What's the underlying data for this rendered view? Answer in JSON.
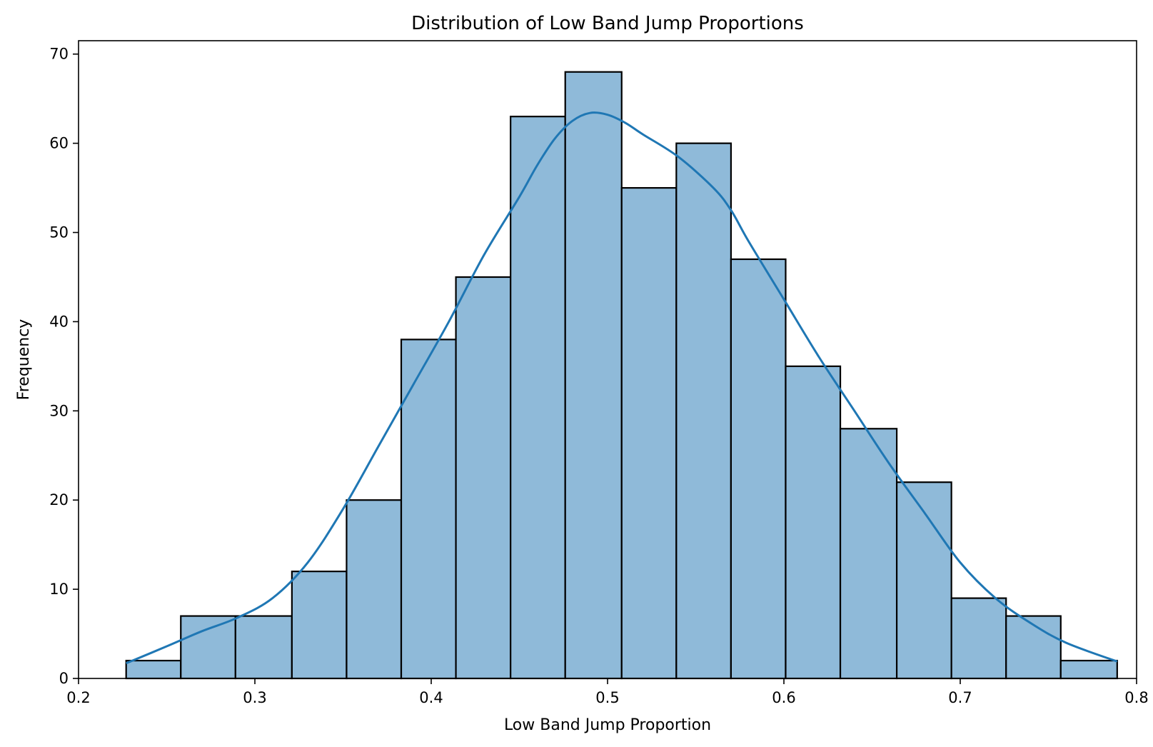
{
  "chart_data": {
    "type": "bar",
    "title": "Distribution of Low Band Jump Proportions",
    "xlabel": "Low Band Jump Proportion",
    "ylabel": "Frequency",
    "xlim": [
      0.2,
      0.8
    ],
    "ylim": [
      0,
      70
    ],
    "xticks": [
      "0.2",
      "0.3",
      "0.4",
      "0.5",
      "0.6",
      "0.7",
      "0.8"
    ],
    "yticks": [
      "0",
      "10",
      "20",
      "30",
      "40",
      "50",
      "60",
      "70"
    ],
    "bins": [
      {
        "start": 0.227,
        "end": 0.258,
        "count": 2
      },
      {
        "start": 0.258,
        "end": 0.289,
        "count": 7
      },
      {
        "start": 0.289,
        "end": 0.321,
        "count": 7
      },
      {
        "start": 0.321,
        "end": 0.352,
        "count": 12
      },
      {
        "start": 0.352,
        "end": 0.383,
        "count": 20
      },
      {
        "start": 0.383,
        "end": 0.414,
        "count": 38
      },
      {
        "start": 0.414,
        "end": 0.445,
        "count": 45
      },
      {
        "start": 0.445,
        "end": 0.476,
        "count": 63
      },
      {
        "start": 0.476,
        "end": 0.508,
        "count": 68
      },
      {
        "start": 0.508,
        "end": 0.539,
        "count": 55
      },
      {
        "start": 0.539,
        "end": 0.57,
        "count": 60
      },
      {
        "start": 0.57,
        "end": 0.601,
        "count": 47
      },
      {
        "start": 0.601,
        "end": 0.632,
        "count": 35
      },
      {
        "start": 0.632,
        "end": 0.664,
        "count": 28
      },
      {
        "start": 0.664,
        "end": 0.695,
        "count": 22
      },
      {
        "start": 0.695,
        "end": 0.726,
        "count": 9
      },
      {
        "start": 0.726,
        "end": 0.757,
        "count": 7
      },
      {
        "start": 0.757,
        "end": 0.789,
        "count": 2
      }
    ],
    "kde": {
      "x": [
        0.227,
        0.25,
        0.27,
        0.29,
        0.31,
        0.33,
        0.35,
        0.37,
        0.39,
        0.41,
        0.43,
        0.45,
        0.46,
        0.47,
        0.48,
        0.49,
        0.5,
        0.51,
        0.52,
        0.54,
        0.56,
        0.57,
        0.58,
        0.6,
        0.62,
        0.64,
        0.66,
        0.68,
        0.7,
        0.72,
        0.74,
        0.76,
        0.789
      ],
      "y": [
        1.7,
        3.6,
        5.3,
        6.8,
        9.0,
        13.0,
        19.0,
        26.0,
        33.0,
        40.0,
        47.5,
        54.0,
        57.5,
        60.5,
        62.5,
        63.4,
        63.2,
        62.3,
        61.0,
        58.5,
        55.0,
        52.5,
        49.0,
        42.5,
        36.0,
        30.0,
        24.0,
        18.5,
        13.0,
        9.0,
        6.2,
        4.0,
        1.9
      ]
    },
    "colors": {
      "bar_fill": "#8fbad9",
      "bar_edge": "#000000",
      "kde_line": "#1f77b4"
    },
    "grid": false,
    "legend": "none"
  }
}
